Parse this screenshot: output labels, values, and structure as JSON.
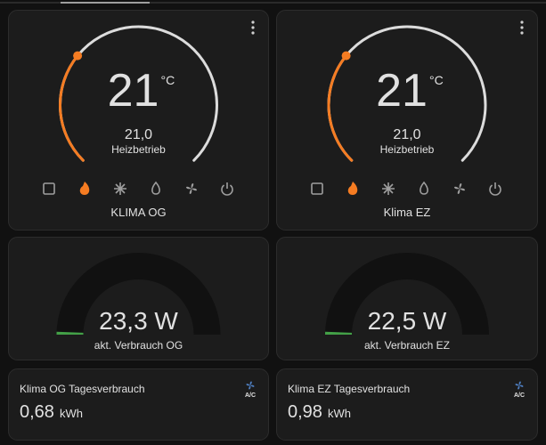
{
  "thermostats": [
    {
      "temperature": 21,
      "unit": "°C",
      "current": "21,0",
      "mode": "Heizbetrieb",
      "name": "KLIMA OG"
    },
    {
      "temperature": 21,
      "unit": "°C",
      "current": "21,0",
      "mode": "Heizbetrieb",
      "name": "Klima EZ"
    }
  ],
  "gauges": [
    {
      "value": "23,3 W",
      "label": "akt. Verbrauch OG"
    },
    {
      "value": "22,5 W",
      "label": "akt. Verbrauch EZ"
    }
  ],
  "entities": [
    {
      "name": "Klima OG Tagesverbrauch",
      "value": "0,68",
      "unit": "kWh",
      "icon_label": "A/C"
    },
    {
      "name": "Klima EZ Tagesverbrauch",
      "value": "0,98",
      "unit": "kWh",
      "icon_label": "A/C"
    }
  ]
}
